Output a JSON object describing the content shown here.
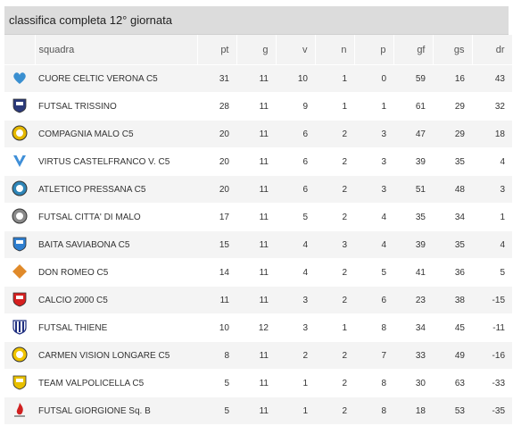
{
  "title": "classifica completa 12° giornata",
  "columns": {
    "logo": "",
    "team": "squadra",
    "pt": "pt",
    "g": "g",
    "v": "v",
    "n": "n",
    "p": "p",
    "gf": "gf",
    "gs": "gs",
    "dr": "dr"
  },
  "rows": [
    {
      "team": "CUORE CELTIC VERONA C5",
      "pt": "31",
      "g": "11",
      "v": "10",
      "n": "1",
      "p": "0",
      "gf": "59",
      "gs": "16",
      "dr": "43",
      "logo_icon": "heart-crest-icon",
      "color": "#3a8fd0"
    },
    {
      "team": "FUTSAL TRISSINO",
      "pt": "28",
      "g": "11",
      "v": "9",
      "n": "1",
      "p": "1",
      "gf": "61",
      "gs": "29",
      "dr": "32",
      "logo_icon": "shield-crest-icon",
      "color": "#2b3a7a"
    },
    {
      "team": "COMPAGNIA MALO C5",
      "pt": "20",
      "g": "11",
      "v": "6",
      "n": "2",
      "p": "3",
      "gf": "47",
      "gs": "29",
      "dr": "18",
      "logo_icon": "round-crest-icon",
      "color": "#e5b800"
    },
    {
      "team": "VIRTUS CASTELFRANCO V. C5",
      "pt": "20",
      "g": "11",
      "v": "6",
      "n": "2",
      "p": "3",
      "gf": "39",
      "gs": "35",
      "dr": "4",
      "logo_icon": "v-crest-icon",
      "color": "#3f8fd8"
    },
    {
      "team": "ATLETICO PRESSANA C5",
      "pt": "20",
      "g": "11",
      "v": "6",
      "n": "2",
      "p": "3",
      "gf": "51",
      "gs": "48",
      "dr": "3",
      "logo_icon": "round-crest-icon",
      "color": "#2f86b8"
    },
    {
      "team": "FUTSAL CITTA' DI MALO",
      "pt": "17",
      "g": "11",
      "v": "5",
      "n": "2",
      "p": "4",
      "gf": "35",
      "gs": "34",
      "dr": "1",
      "logo_icon": "round-crest-icon",
      "color": "#8a8a8a"
    },
    {
      "team": "BAITA SAVIABONA C5",
      "pt": "15",
      "g": "11",
      "v": "4",
      "n": "3",
      "p": "4",
      "gf": "39",
      "gs": "35",
      "dr": "4",
      "logo_icon": "shield-crest-icon",
      "color": "#2f7fd0"
    },
    {
      "team": "DON ROMEO C5",
      "pt": "14",
      "g": "11",
      "v": "4",
      "n": "2",
      "p": "5",
      "gf": "41",
      "gs": "36",
      "dr": "5",
      "logo_icon": "diamond-crest-icon",
      "color": "#e08a2a"
    },
    {
      "team": "CALCIO 2000 C5",
      "pt": "11",
      "g": "11",
      "v": "3",
      "n": "2",
      "p": "6",
      "gf": "23",
      "gs": "38",
      "dr": "-15",
      "logo_icon": "shield-crest-icon",
      "color": "#d62020"
    },
    {
      "team": "FUTSAL THIENE",
      "pt": "10",
      "g": "12",
      "v": "3",
      "n": "1",
      "p": "8",
      "gf": "34",
      "gs": "45",
      "dr": "-11",
      "logo_icon": "striped-shield-icon",
      "color": "#1f2f80"
    },
    {
      "team": "CARMEN VISION LONGARE C5",
      "pt": "8",
      "g": "11",
      "v": "2",
      "n": "2",
      "p": "7",
      "gf": "33",
      "gs": "49",
      "dr": "-16",
      "logo_icon": "round-crest-icon",
      "color": "#f0c400"
    },
    {
      "team": "TEAM VALPOLICELLA C5",
      "pt": "5",
      "g": "11",
      "v": "1",
      "n": "2",
      "p": "8",
      "gf": "30",
      "gs": "63",
      "dr": "-33",
      "logo_icon": "shield-crest-icon",
      "color": "#e8c000"
    },
    {
      "team": "FUTSAL GIORGIONE Sq. B",
      "pt": "5",
      "g": "11",
      "v": "1",
      "n": "2",
      "p": "8",
      "gf": "18",
      "gs": "53",
      "dr": "-35",
      "logo_icon": "flame-crest-icon",
      "color": "#d02020"
    }
  ]
}
